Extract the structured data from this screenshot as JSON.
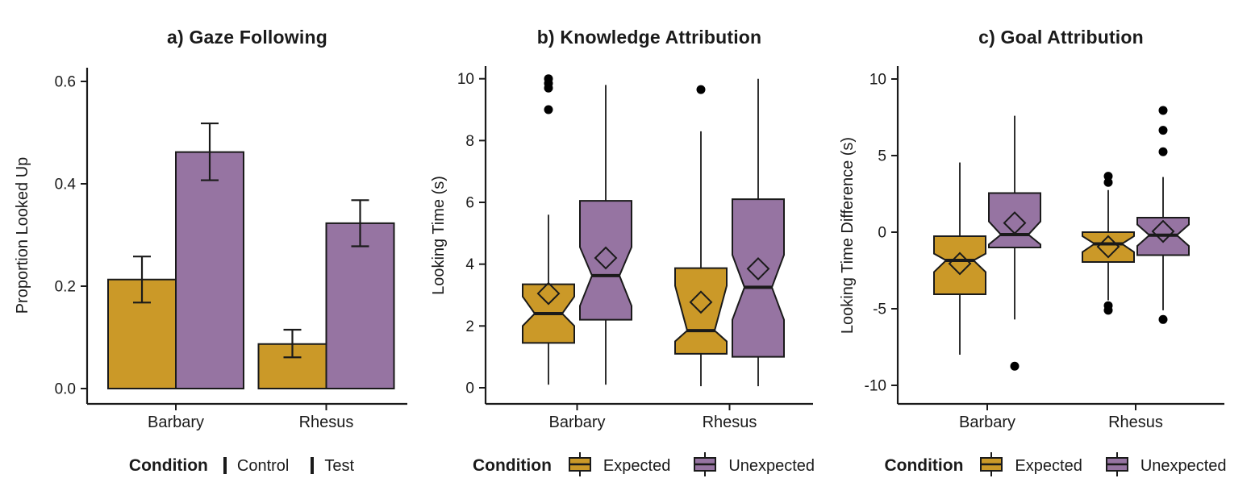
{
  "figure": {
    "background": "#ffffff",
    "condition_colors": {
      "gold": "#CB9928",
      "purple": "#9674A2",
      "outline": "#1a1a1a",
      "point": "#000000"
    }
  },
  "chart_data": [
    {
      "type": "bar",
      "title": "a) Gaze Following",
      "xlabel": "",
      "ylabel": "Proportion Looked Up",
      "categories": [
        "Barbary",
        "Rhesus"
      ],
      "ytick_labels": [
        "0.0",
        "0.2",
        "0.4",
        "0.6"
      ],
      "ytick_values": [
        0,
        0.2,
        0.4,
        0.6
      ],
      "ylim": [
        0,
        0.63
      ],
      "grid": false,
      "legend": {
        "title": "Condition",
        "position": "bottom",
        "items": [
          {
            "label": "Control",
            "color": "#CB9928"
          },
          {
            "label": "Test",
            "color": "#9674A2"
          }
        ]
      },
      "series": [
        {
          "name": "Control",
          "color": "#CB9928",
          "values": [
            0.213,
            0.087
          ],
          "error_low": [
            0.168,
            0.061
          ],
          "error_high": [
            0.258,
            0.115
          ]
        },
        {
          "name": "Test",
          "color": "#9674A2",
          "values": [
            0.462,
            0.323
          ],
          "error_low": [
            0.407,
            0.278
          ],
          "error_high": [
            0.518,
            0.368
          ]
        }
      ]
    },
    {
      "type": "boxplot",
      "title": "b) Knowledge Attribution",
      "xlabel": "",
      "ylabel": "Looking Time (s)",
      "categories": [
        "Barbary",
        "Rhesus"
      ],
      "ytick_labels": [
        "0",
        "2",
        "4",
        "6",
        "8",
        "10"
      ],
      "ytick_values": [
        0,
        2,
        4,
        6,
        8,
        10
      ],
      "ylim": [
        -0.3,
        10.5
      ],
      "grid": false,
      "notched": true,
      "legend": {
        "title": "Condition",
        "position": "bottom",
        "items": [
          {
            "label": "Expected",
            "color": "#CB9928"
          },
          {
            "label": "Unexpected",
            "color": "#9674A2"
          }
        ]
      },
      "series": [
        {
          "name": "Expected",
          "color": "#CB9928",
          "boxes": [
            {
              "category": "Barbary",
              "whisker_low": 0.1,
              "q1": 1.45,
              "median": 2.4,
              "q3": 3.35,
              "whisker_high": 5.6,
              "notch_low": 2.0,
              "notch_high": 2.95,
              "mean": 3.05,
              "outliers": [
                9.0,
                9.7,
                9.85,
                10.0
              ]
            },
            {
              "category": "Rhesus",
              "whisker_low": 0.05,
              "q1": 1.1,
              "median": 1.85,
              "q3": 3.87,
              "whisker_high": 8.3,
              "notch_low": 1.5,
              "notch_high": 3.3,
              "mean": 2.77,
              "outliers": [
                9.65
              ]
            }
          ]
        },
        {
          "name": "Unexpected",
          "color": "#9674A2",
          "boxes": [
            {
              "category": "Barbary",
              "whisker_low": 0.1,
              "q1": 2.2,
              "median": 3.63,
              "q3": 6.05,
              "whisker_high": 9.8,
              "notch_low": 2.65,
              "notch_high": 4.55,
              "mean": 4.2,
              "outliers": []
            },
            {
              "category": "Rhesus",
              "whisker_low": 0.05,
              "q1": 1.0,
              "median": 3.25,
              "q3": 6.1,
              "whisker_high": 10.0,
              "notch_low": 2.2,
              "notch_high": 4.3,
              "mean": 3.85,
              "outliers": []
            }
          ]
        }
      ]
    },
    {
      "type": "boxplot",
      "title": "c) Goal Attribution",
      "xlabel": "",
      "ylabel": "Looking Time Difference (s)",
      "categories": [
        "Barbary",
        "Rhesus"
      ],
      "ytick_labels": [
        "-10",
        "-5",
        "0",
        "5",
        "10"
      ],
      "ytick_values": [
        -10,
        -5,
        0,
        5,
        10
      ],
      "ylim": [
        -11,
        11
      ],
      "grid": false,
      "notched": true,
      "legend": {
        "title": "Condition",
        "position": "bottom",
        "items": [
          {
            "label": "Expected",
            "color": "#CB9928"
          },
          {
            "label": "Unexpected",
            "color": "#9674A2"
          }
        ]
      },
      "series": [
        {
          "name": "Expected",
          "color": "#CB9928",
          "boxes": [
            {
              "category": "Barbary",
              "whisker_low": -8.0,
              "q1": -4.05,
              "median": -1.84,
              "q3": -0.26,
              "whisker_high": 4.55,
              "notch_low": -2.6,
              "notch_high": -1.4,
              "mean": -2.05,
              "outliers": []
            },
            {
              "category": "Rhesus",
              "whisker_low": -4.45,
              "q1": -1.95,
              "median": -0.76,
              "q3": 0.0,
              "whisker_high": 2.75,
              "notch_low": -1.3,
              "notch_high": -0.26,
              "mean": -0.95,
              "outliers": [
                3.65,
                3.25,
                -4.8,
                -5.1
              ]
            }
          ]
        },
        {
          "name": "Unexpected",
          "color": "#9674A2",
          "boxes": [
            {
              "category": "Barbary",
              "whisker_low": -5.7,
              "q1": -1.0,
              "median": -0.16,
              "q3": 2.55,
              "whisker_high": 7.6,
              "notch_low": -0.8,
              "notch_high": 0.7,
              "mean": 0.6,
              "outliers": [
                -8.75
              ]
            },
            {
              "category": "Rhesus",
              "whisker_low": -5.1,
              "q1": -1.5,
              "median": -0.2,
              "q3": 0.95,
              "whisker_high": 3.6,
              "notch_low": -0.9,
              "notch_high": 0.5,
              "mean": 0.05,
              "outliers": [
                7.95,
                6.65,
                5.25,
                -5.7
              ]
            }
          ]
        }
      ]
    }
  ]
}
